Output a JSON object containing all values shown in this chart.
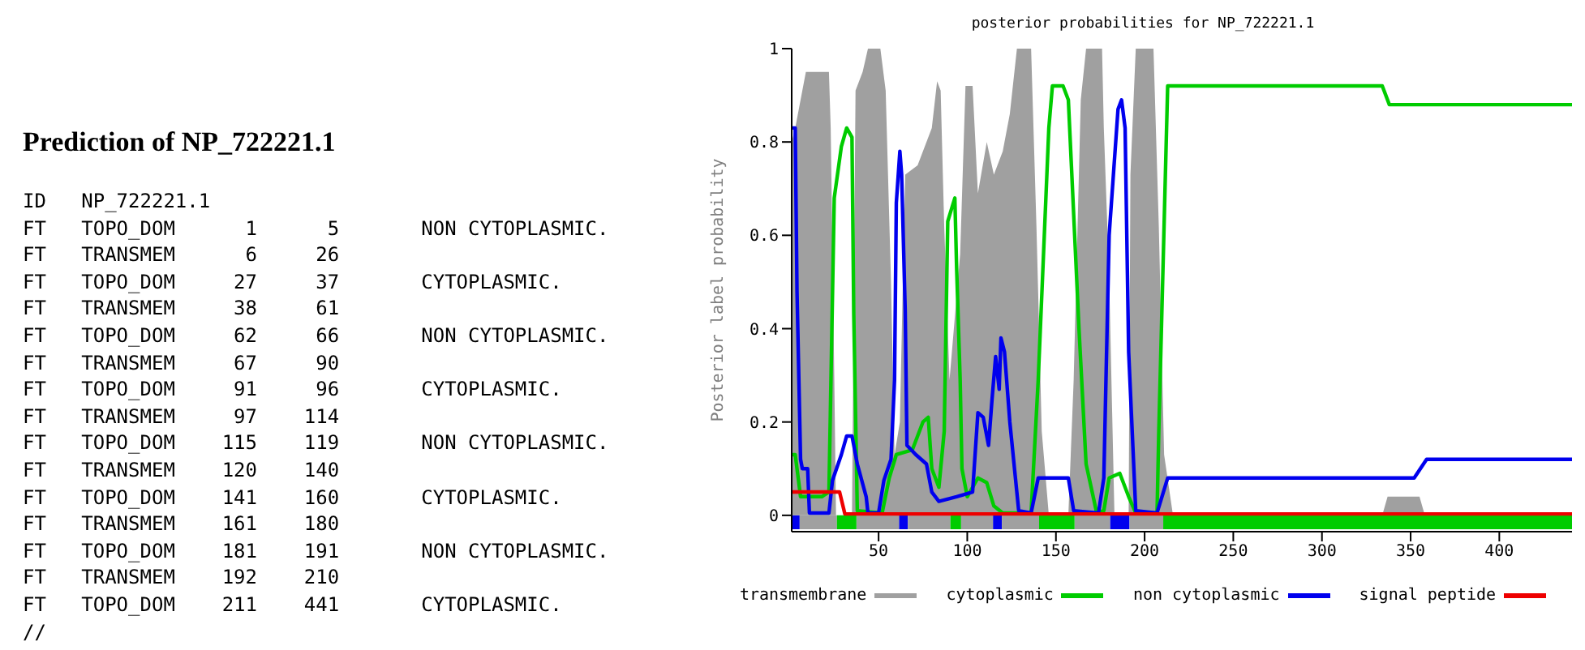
{
  "chart_data": [
    {
      "type": "other",
      "title": "Prediction of NP_722221.1",
      "annotations": [
        "ID   NP_722221.1",
        "FT   TOPO_DOM      1      5       NON CYTOPLASMIC.",
        "FT   TRANSMEM      6     26",
        "FT   TOPO_DOM     27     37       CYTOPLASMIC.",
        "FT   TRANSMEM     38     61",
        "FT   TOPO_DOM     62     66       NON CYTOPLASMIC.",
        "FT   TRANSMEM     67     90",
        "FT   TOPO_DOM     91     96       CYTOPLASMIC.",
        "FT   TRANSMEM     97    114",
        "FT   TOPO_DOM    115    119       NON CYTOPLASMIC.",
        "FT   TRANSMEM    120    140",
        "FT   TOPO_DOM    141    160       CYTOPLASMIC.",
        "FT   TRANSMEM    161    180",
        "FT   TOPO_DOM    181    191       NON CYTOPLASMIC.",
        "FT   TRANSMEM    192    210",
        "FT   TOPO_DOM    211    441       CYTOPLASMIC.",
        "//"
      ]
    },
    {
      "type": "line",
      "title": "posterior probabilities for NP_722221.1",
      "ylabel": "Posterior label probability",
      "xlim": [
        1,
        441
      ],
      "xticks": [
        50,
        100,
        150,
        200,
        250,
        300,
        350,
        400
      ],
      "ylim": [
        -0.035,
        1
      ],
      "yticks": [
        0,
        0.2,
        0.4,
        0.6,
        0.8,
        1
      ],
      "grid": false,
      "legend": "bottom",
      "series": [
        {
          "type": "area",
          "color": "#0000ee",
          "x": [
            1,
            5.5,
            30,
            61.5,
            66.5,
            90,
            114.5,
            119.5,
            150,
            180.5,
            191.5
          ],
          "values": [
            -0.03,
            -0.03,
            null,
            -0.03,
            -0.03,
            null,
            -0.03,
            -0.03,
            null,
            -0.03,
            -0.03
          ]
        },
        {
          "type": "area",
          "color": "#a0a0a0",
          "x": [
            5.5,
            26.5,
            30,
            37.5,
            61.5,
            64,
            66.5,
            90.5,
            93,
            96.5,
            114.5,
            117,
            119.5,
            140.5,
            150,
            160.5,
            180.5,
            185,
            191.5,
            210.5
          ],
          "values": [
            -0.03,
            -0.03,
            null,
            -0.03,
            -0.03,
            null,
            -0.03,
            -0.03,
            null,
            -0.03,
            -0.03,
            null,
            -0.03,
            -0.03,
            null,
            -0.03,
            -0.03,
            null,
            -0.03,
            -0.03
          ]
        },
        {
          "type": "area",
          "color": "#00cc00",
          "x": [
            26.5,
            37.5,
            60,
            90.5,
            96.5,
            120,
            140.5,
            160.5,
            190,
            210.5,
            441
          ],
          "values": [
            -0.03,
            -0.03,
            null,
            -0.03,
            -0.03,
            null,
            -0.03,
            -0.03,
            null,
            -0.03,
            -0.03
          ]
        },
        {
          "name": "transmembrane",
          "type": "area",
          "color": "#a0a0a0",
          "x": [
            1,
            3,
            9,
            22,
            23,
            25,
            26,
            35,
            37,
            41,
            44,
            51,
            54,
            57,
            59,
            62,
            65,
            72,
            80,
            83,
            85,
            87,
            90,
            96,
            99,
            103,
            106,
            111,
            115,
            120,
            124,
            128,
            136,
            139,
            142,
            146,
            157,
            160,
            164,
            167,
            176,
            177,
            180,
            183,
            191,
            192,
            195,
            205,
            208,
            211,
            216,
            334,
            337,
            355,
            358,
            441
          ],
          "values": [
            0.8,
            0.83,
            0.95,
            0.95,
            0.83,
            0.3,
            0,
            0,
            0.91,
            0.95,
            1,
            1,
            0.91,
            0.5,
            0.13,
            0.2,
            0.73,
            0.75,
            0.83,
            0.93,
            0.91,
            0.62,
            0.29,
            0.56,
            0.92,
            0.92,
            0.69,
            0.8,
            0.73,
            0.78,
            0.86,
            1,
            1,
            0.62,
            0.18,
            0,
            0,
            0.29,
            0.89,
            1,
            1,
            0.83,
            0.51,
            0,
            0,
            0.73,
            1,
            1,
            0.62,
            0.13,
            0,
            0,
            0.04,
            0.04,
            0,
            0
          ]
        },
        {
          "name": "cytoplasmic",
          "color": "#00cc00",
          "x": [
            1,
            3,
            6,
            18,
            22,
            25,
            29,
            32,
            35,
            36,
            38,
            52,
            56,
            60,
            69,
            75,
            78,
            80,
            84,
            87,
            89,
            93,
            94,
            96,
            97,
            100,
            106,
            111,
            115,
            120,
            136,
            140,
            146,
            148,
            154,
            157,
            163,
            167,
            173,
            177,
            180,
            186,
            191,
            195,
            207,
            208,
            213,
            334,
            338,
            441
          ],
          "values": [
            0.13,
            0.13,
            0.04,
            0.04,
            0.05,
            0.68,
            0.79,
            0.83,
            0.81,
            0.43,
            0.01,
            0.005,
            0.08,
            0.13,
            0.14,
            0.2,
            0.21,
            0.1,
            0.06,
            0.18,
            0.63,
            0.68,
            0.53,
            0.29,
            0.1,
            0.04,
            0.08,
            0.07,
            0.02,
            0.005,
            0.005,
            0.29,
            0.83,
            0.92,
            0.92,
            0.89,
            0.4,
            0.11,
            0.005,
            0.01,
            0.08,
            0.09,
            0.04,
            0.005,
            0.005,
            0.18,
            0.92,
            0.92,
            0.88,
            0.88
          ]
        },
        {
          "name": "non cytoplasmic",
          "color": "#0000ee",
          "x": [
            1,
            3,
            4,
            6,
            7,
            10,
            11,
            22,
            24,
            29,
            32,
            35,
            38,
            43,
            44,
            50,
            53,
            57,
            59,
            60,
            62,
            63,
            65,
            66,
            71,
            77,
            80,
            84,
            94,
            103,
            106,
            109,
            112,
            114,
            116,
            118,
            119,
            121,
            124,
            129,
            136,
            140,
            157,
            160,
            174,
            177,
            180,
            185,
            187,
            189,
            191,
            195,
            207,
            213,
            352,
            359,
            441
          ],
          "values": [
            0.83,
            0.83,
            0.48,
            0.12,
            0.1,
            0.1,
            0.005,
            0.005,
            0.075,
            0.13,
            0.17,
            0.17,
            0.11,
            0.04,
            0.005,
            0.005,
            0.075,
            0.12,
            0.29,
            0.67,
            0.78,
            0.73,
            0.44,
            0.15,
            0.13,
            0.11,
            0.05,
            0.03,
            0.04,
            0.05,
            0.22,
            0.21,
            0.15,
            0.25,
            0.34,
            0.27,
            0.38,
            0.35,
            0.2,
            0.01,
            0.005,
            0.08,
            0.08,
            0.01,
            0.005,
            0.08,
            0.6,
            0.87,
            0.89,
            0.83,
            0.35,
            0.01,
            0.005,
            0.08,
            0.08,
            0.12,
            0.12
          ]
        },
        {
          "name": "signal peptide",
          "color": "#ee0000",
          "x": [
            1,
            28,
            31,
            441
          ],
          "values": [
            0.05,
            0.05,
            0.003,
            0.003
          ]
        }
      ]
    }
  ]
}
